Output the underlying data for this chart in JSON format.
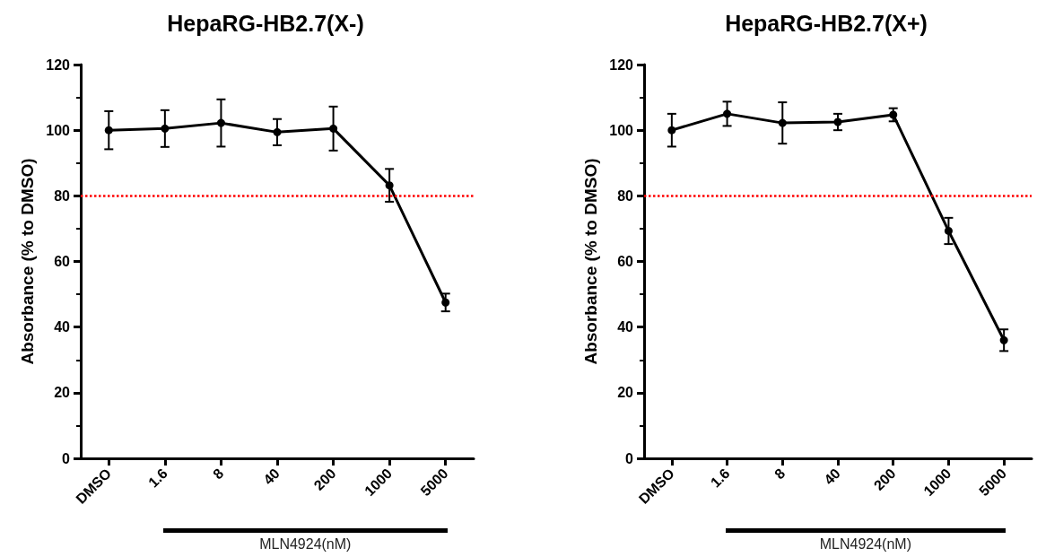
{
  "chart_data": [
    {
      "type": "line",
      "title": "HepaRG-HB2.7(X-)",
      "ylabel": "Absorbance (% to DMSO)",
      "xlabel": "MLN4924(nM)",
      "categories": [
        "DMSO",
        "1.6",
        "8",
        "40",
        "200",
        "1000",
        "5000"
      ],
      "series": [
        {
          "color": "#000000",
          "values": [
            100,
            100.5,
            102.2,
            99.4,
            100.5,
            83.2,
            47.5
          ],
          "errors": [
            5.8,
            5.6,
            7.2,
            4,
            6.7,
            5,
            2.7
          ]
        }
      ],
      "ylim": [
        0,
        120
      ],
      "yticks": [
        0,
        20,
        40,
        60,
        80,
        100,
        120
      ],
      "grid": false,
      "marker": "circle",
      "line_style": "solid",
      "ref_lines": [
        {
          "axis": "y",
          "value": 80,
          "color": "#ff0000",
          "line_style": "dotted"
        }
      ]
    },
    {
      "type": "line",
      "title": "HepaRG-HB2.7(X+)",
      "ylabel": "Absorbance (% to DMSO)",
      "xlabel": "MLN4924(nM)",
      "categories": [
        "DMSO",
        "1.6",
        "8",
        "40",
        "200",
        "1000",
        "5000"
      ],
      "series": [
        {
          "color": "#000000",
          "values": [
            100,
            105,
            102.2,
            102.5,
            104.7,
            69.3,
            36
          ],
          "errors": [
            5,
            3.7,
            6.3,
            2.5,
            2,
            4,
            3.3
          ]
        }
      ],
      "ylim": [
        0,
        120
      ],
      "yticks": [
        0,
        20,
        40,
        60,
        80,
        100,
        120
      ],
      "grid": false,
      "marker": "circle",
      "line_style": "solid",
      "ref_lines": [
        {
          "axis": "y",
          "value": 80,
          "color": "#ff0000",
          "line_style": "dotted"
        }
      ]
    }
  ]
}
